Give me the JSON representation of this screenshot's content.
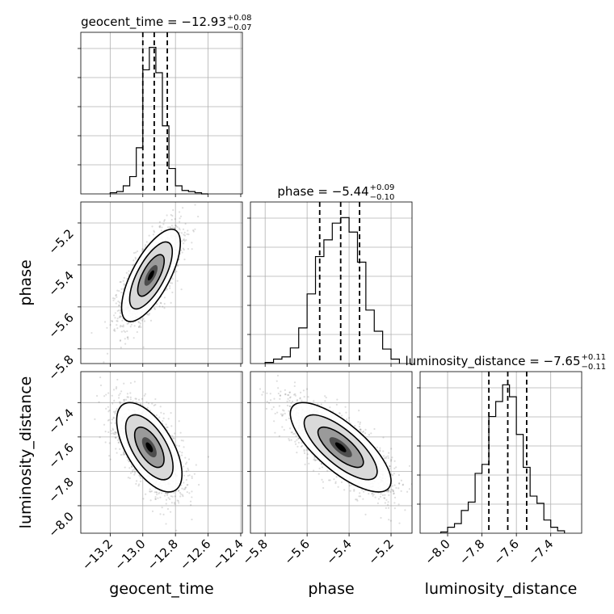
{
  "chart_data": {
    "type": "corner",
    "parameters": [
      "geocent_time",
      "phase",
      "luminosity_distance"
    ],
    "axis_labels": [
      "geocent_time",
      "phase",
      "luminosity_distance"
    ],
    "grid": true,
    "ranges": {
      "geocent_time": [
        -13.38,
        -12.39
      ],
      "phase": [
        -5.87,
        -5.1
      ],
      "luminosity_distance": [
        -8.16,
        -7.22
      ]
    },
    "ticks": {
      "geocent_time": [
        -13.2,
        -13.0,
        -12.8,
        -12.6,
        -12.4
      ],
      "phase": [
        -5.8,
        -5.6,
        -5.4,
        -5.2
      ],
      "luminosity_distance": [
        -8.0,
        -7.8,
        -7.6,
        -7.4
      ]
    },
    "tick_labels": {
      "geocent_time": [
        "−13.2",
        "−13.0",
        "−12.8",
        "−12.6",
        "−12.4"
      ],
      "phase": [
        "−5.8",
        "−5.6",
        "−5.4",
        "−5.2"
      ],
      "luminosity_distance": [
        "−8.0",
        "−7.8",
        "−7.6",
        "−7.4"
      ]
    },
    "titles": [
      {
        "param": "geocent_time",
        "prefix": "geocent_time = −12.93",
        "plus": "+0.08",
        "minus": "−0.07"
      },
      {
        "param": "phase",
        "prefix": "phase = −5.44",
        "plus": "+0.09",
        "minus": "−0.10"
      },
      {
        "param": "luminosity_distance",
        "prefix": "luminosity_distance = −7.65",
        "plus": "+0.11",
        "minus": "−0.11"
      }
    ],
    "quantiles": {
      "geocent_time": [
        -13.0,
        -12.93,
        -12.85
      ],
      "phase": [
        -5.54,
        -5.44,
        -5.35
      ],
      "luminosity_distance": [
        -7.76,
        -7.65,
        -7.54
      ]
    },
    "histograms": {
      "geocent_time": {
        "edges": [
          -13.2,
          -13.16,
          -13.12,
          -13.08,
          -13.04,
          -13.0,
          -12.96,
          -12.92,
          -12.88,
          -12.84,
          -12.8,
          -12.76,
          -12.72,
          -12.68,
          -12.64,
          -12.6
        ],
        "counts": [
          2,
          4,
          14,
          30,
          80,
          215,
          254,
          210,
          118,
          44,
          14,
          6,
          4,
          2,
          0
        ],
        "ymax": 280
      },
      "phase": {
        "edges": [
          -5.8,
          -5.76,
          -5.72,
          -5.68,
          -5.64,
          -5.6,
          -5.56,
          -5.52,
          -5.48,
          -5.44,
          -5.4,
          -5.36,
          -5.32,
          -5.28,
          -5.24,
          -5.2,
          -5.16
        ],
        "counts": [
          2,
          8,
          12,
          28,
          64,
          125,
          192,
          222,
          252,
          262,
          236,
          182,
          96,
          58,
          26,
          8
        ],
        "ymax": 290
      },
      "luminosity_distance": {
        "edges": [
          -8.04,
          -8.0,
          -7.96,
          -7.92,
          -7.88,
          -7.84,
          -7.8,
          -7.76,
          -7.72,
          -7.68,
          -7.64,
          -7.6,
          -7.56,
          -7.52,
          -7.48,
          -7.44,
          -7.4,
          -7.36,
          -7.32
        ],
        "counts": [
          2,
          10,
          16,
          38,
          52,
          100,
          115,
          195,
          220,
          248,
          228,
          165,
          110,
          62,
          50,
          22,
          10,
          4
        ],
        "ymax": 270
      }
    },
    "scatter_pairs": [
      {
        "x": "geocent_time",
        "y": "phase",
        "center": [
          -12.95,
          -5.45
        ],
        "sd": [
          0.09,
          0.11
        ],
        "corr": 0.7,
        "n": 1800
      },
      {
        "x": "geocent_time",
        "y": "luminosity_distance",
        "center": [
          -12.96,
          -7.66
        ],
        "sd": [
          0.1,
          0.13
        ],
        "corr": -0.6,
        "n": 1800
      },
      {
        "x": "phase",
        "y": "luminosity_distance",
        "center": [
          -5.44,
          -7.66
        ],
        "sd": [
          0.12,
          0.13
        ],
        "corr": -0.75,
        "n": 2000
      }
    ]
  }
}
